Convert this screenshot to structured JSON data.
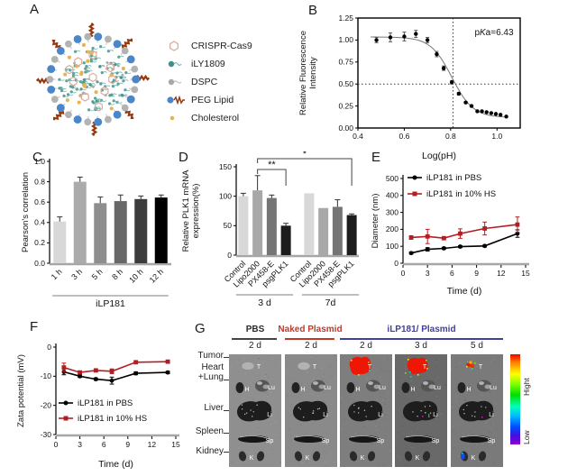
{
  "panels": {
    "a": "A",
    "b": "B",
    "c": "C",
    "d": "D",
    "e": "E",
    "f": "F",
    "g": "G"
  },
  "panel_a": {
    "legend": [
      {
        "icon": "crispr-cas9-icon",
        "label": "CRISPR-Cas9"
      },
      {
        "icon": "ily1809-icon",
        "label": "iLY1809"
      },
      {
        "icon": "dspc-icon",
        "label": "DSPC"
      },
      {
        "icon": "peg-lipid-icon",
        "label": "PEG Lipid"
      },
      {
        "icon": "cholesterol-icon",
        "label": "Cholesterol"
      }
    ],
    "colors": {
      "crispr": "#dcab9e",
      "ily1809": "#3f9188",
      "dspc": "#a8a8a8",
      "peg_blue": "#4a86c8",
      "peg_tail": "#96380d",
      "cholesterol": "#e7b44f"
    }
  },
  "chart_data": [
    {
      "id": "B",
      "type": "scatter",
      "xlabel": "Log(pH)",
      "ylabel_lines": [
        "Relative Fluorescence",
        "Intensity"
      ],
      "xlim": [
        0.4,
        1.1
      ],
      "ylim": [
        0,
        1.25
      ],
      "xticks": [
        0.4,
        0.6,
        0.8,
        1.0
      ],
      "xtick_labels": [
        "0.4",
        "0.6",
        "0.8",
        "1.0"
      ],
      "yticks": [
        0,
        0.25,
        0.5,
        0.75,
        1,
        1.25
      ],
      "ytick_labels": [
        "0.00",
        "0.25",
        "0.50",
        "0.75",
        "1.00",
        "1.25"
      ],
      "hline": 0.5,
      "vline": 0.81,
      "pka": {
        "pre": "p",
        "italic": "K",
        "post": "a=6.43"
      },
      "curve": {
        "top": 1.035,
        "bottom": 0.12,
        "x50": 0.805,
        "slope": 9.5
      },
      "x": [
        0.48,
        0.54,
        0.6,
        0.65,
        0.7,
        0.74,
        0.77,
        0.805,
        0.835,
        0.865,
        0.89,
        0.915,
        0.935,
        0.955,
        0.975,
        0.995,
        1.015,
        1.04
      ],
      "y": [
        1.0,
        1.03,
        1.04,
        1.07,
        1.0,
        0.84,
        0.68,
        0.52,
        0.39,
        0.29,
        0.25,
        0.19,
        0.19,
        0.18,
        0.17,
        0.16,
        0.15,
        0.13
      ],
      "yerr": [
        0.03,
        0.05,
        0.05,
        0.04,
        0.03,
        0.03,
        0.025,
        0.02,
        0.015,
        0.01,
        0.01,
        0,
        0,
        0,
        0,
        0,
        0,
        0
      ]
    },
    {
      "id": "C",
      "type": "bar",
      "ylabel": "Pearson's correlation",
      "categories": [
        "1 h",
        "3 h",
        "5 h",
        "8 h",
        "10 h",
        "12 h"
      ],
      "values": [
        0.41,
        0.8,
        0.59,
        0.61,
        0.63,
        0.645
      ],
      "errors": [
        0.045,
        0.045,
        0.06,
        0.06,
        0.03,
        0.025
      ],
      "bar_colors": [
        "#d8d8d8",
        "#ababab",
        "#8e8e8e",
        "#686868",
        "#3c3c3c",
        "#000000"
      ],
      "ylim": [
        0,
        1
      ],
      "yticks": [
        0,
        0.2,
        0.4,
        0.6,
        0.8,
        1
      ],
      "ytick_labels": [
        "0.0",
        "0.2",
        "0.4",
        "0.6",
        "0.8",
        "1.0"
      ],
      "groups": [
        {
          "label": "iLP181",
          "from": 0,
          "to": 5
        }
      ]
    },
    {
      "id": "D",
      "type": "bar",
      "ylabel_lines": [
        "Relative PLK1 mRNA",
        "expression(%)"
      ],
      "categories": [
        "Control",
        "Lipo2000",
        "PX458-E",
        "psgPLK1",
        "Control",
        "Lipo2000",
        "PX458-E",
        "psgPLK1"
      ],
      "values": [
        100,
        110,
        97,
        50,
        105,
        80,
        82,
        68
      ],
      "errors": [
        5,
        25,
        5,
        4,
        0,
        0,
        12,
        2
      ],
      "bar_colors": [
        "#d8d8d8",
        "#a8a8a8",
        "#757575",
        "#1c1c1c",
        "#d8d8d8",
        "#a8a8a8",
        "#757575",
        "#1c1c1c"
      ],
      "ylim": [
        0,
        150
      ],
      "yticks": [
        0,
        50,
        100,
        150
      ],
      "ytick_labels": [
        "0",
        "50",
        "100",
        "150"
      ],
      "groups": [
        {
          "label": "3 d",
          "from": 0,
          "to": 3
        },
        {
          "label": "7d",
          "from": 4,
          "to": 7
        }
      ],
      "significance": [
        {
          "from": 1,
          "to": 3,
          "label": "**"
        },
        {
          "from": 1,
          "to": 7,
          "label": "*"
        }
      ]
    },
    {
      "id": "E",
      "type": "line",
      "xlabel": "Time (d)",
      "ylabel": "Diameter (nm)",
      "xlim": [
        0,
        15
      ],
      "ylim": [
        0,
        500
      ],
      "xticks": [
        0,
        3,
        6,
        9,
        12,
        15
      ],
      "xtick_labels": [
        "0",
        "3",
        "6",
        "9",
        "12",
        "15"
      ],
      "yticks": [
        0,
        100,
        200,
        300,
        400,
        500
      ],
      "ytick_labels": [
        "0",
        "100",
        "200",
        "300",
        "400",
        "500"
      ],
      "series": [
        {
          "name": "iLP181 in PBS",
          "color": "#000000",
          "marker": "circle",
          "x": [
            1,
            3,
            5,
            7,
            10,
            14
          ],
          "values": [
            60,
            82,
            88,
            98,
            102,
            175
          ],
          "errors": [
            6,
            10,
            6,
            6,
            6,
            22
          ]
        },
        {
          "name": "iLP181 in 10% HS",
          "color": "#b01f24",
          "marker": "square",
          "x": [
            1,
            3,
            5,
            7,
            10,
            14
          ],
          "values": [
            152,
            158,
            148,
            175,
            205,
            228
          ],
          "errors": [
            10,
            42,
            8,
            28,
            38,
            45
          ]
        }
      ]
    },
    {
      "id": "F",
      "type": "line",
      "xlabel": "Time (d)",
      "ylabel": "Zata potential (mV)",
      "xlim": [
        0,
        15
      ],
      "ylim": [
        -30,
        0
      ],
      "xticks": [
        0,
        3,
        6,
        9,
        12,
        15
      ],
      "xtick_labels": [
        "0",
        "3",
        "6",
        "9",
        "12",
        "15"
      ],
      "yticks": [
        0,
        -10,
        -20,
        -30
      ],
      "ytick_labels": [
        "0",
        "-10",
        "-20",
        "-30"
      ],
      "series": [
        {
          "name": "iLP181 in PBS",
          "color": "#000000",
          "marker": "circle",
          "x": [
            1,
            3,
            5,
            7,
            10,
            14
          ],
          "values": [
            -8.5,
            -10,
            -11,
            -11.5,
            -9,
            -8.7
          ],
          "errors": [
            1,
            0.4,
            0.4,
            1.2,
            0.5,
            0.4
          ]
        },
        {
          "name": "iLP181 in 10% HS",
          "color": "#b01f24",
          "marker": "square",
          "x": [
            1,
            3,
            5,
            7,
            10,
            14
          ],
          "values": [
            -7,
            -8.7,
            -8,
            -8.3,
            -5.2,
            -5
          ],
          "errors": [
            1.5,
            0.4,
            0.4,
            0.8,
            0.4,
            0.4
          ]
        }
      ]
    }
  ],
  "panel_g": {
    "groups": [
      {
        "label": "PBS",
        "color": "#2b2b2b"
      },
      {
        "label": "Naked Plasmid",
        "color": "#c0392b"
      },
      {
        "label": "iLP181/ Plasmid",
        "color": "#3f3fa0"
      }
    ],
    "timepoints": [
      "2 d",
      "2 d",
      "2 d",
      "3 d",
      "5 d"
    ],
    "row_labels": [
      "Tumor",
      "Heart",
      "+Lung",
      "Liver",
      "Spleen",
      "Kidney"
    ],
    "organ_tags": {
      "tumor": "T",
      "heart": "H",
      "lung": "Lu",
      "liver": "Li",
      "spleen": "Sp",
      "kidney": "K"
    },
    "columns": [
      {
        "bg": "#8f8f8f",
        "tumor_signal": "none"
      },
      {
        "bg": "#8a8a8a",
        "tumor_signal": "none"
      },
      {
        "bg": "#7e7e7e",
        "tumor_signal": "strong"
      },
      {
        "bg": "#696969",
        "tumor_signal": "strong-speckled"
      },
      {
        "bg": "#7a7a7a",
        "tumor_signal": "moderate",
        "kidney_signal": true
      }
    ],
    "colorbar": {
      "high_label": "Hight",
      "low_label": "Low"
    }
  }
}
